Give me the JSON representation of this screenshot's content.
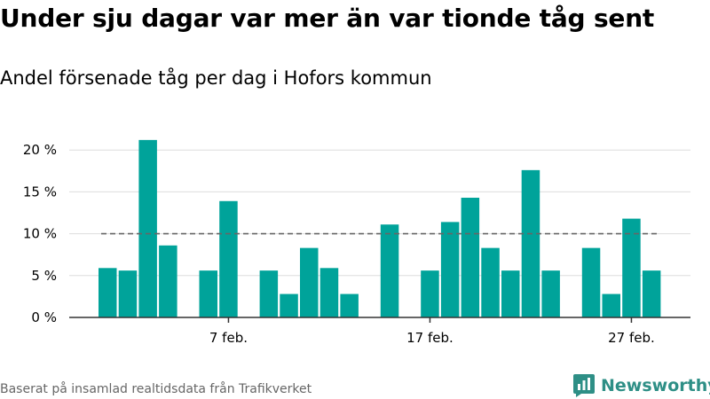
{
  "title": "Under sju dagar var mer än var tionde tåg sent",
  "subtitle": "Andel försenade tåg per dag i Hofors kommun",
  "source": "Baserat på insamlad realtidsdata från Trafikverket",
  "logo_text": "Newsworthy",
  "colors": {
    "bar": "#00a39a",
    "reference": "#666666",
    "grid": "#dddddd",
    "logo": "#2e8f86"
  },
  "chart_data": {
    "type": "bar",
    "title": "Under sju dagar var mer än var tionde tåg sent",
    "subtitle": "Andel försenade tåg per dag i Hofors kommun",
    "xlabel": "",
    "ylabel": "",
    "ylim": [
      0,
      25
    ],
    "yticks": [
      0,
      5,
      10,
      15,
      20
    ],
    "ytick_labels": [
      "0 %",
      "5 %",
      "10 %",
      "15 %",
      "20 %"
    ],
    "xtick_labels": [
      {
        "label": "7 feb.",
        "index": 6
      },
      {
        "label": "17 feb.",
        "index": 16
      },
      {
        "label": "27 feb.",
        "index": 26
      }
    ],
    "reference_line": {
      "value": 10,
      "dashed": true
    },
    "grid": true,
    "categories": [
      "1 feb.",
      "2 feb.",
      "3 feb.",
      "4 feb.",
      "5 feb.",
      "6 feb.",
      "7 feb.",
      "8 feb.",
      "9 feb.",
      "10 feb.",
      "11 feb.",
      "12 feb.",
      "13 feb.",
      "14 feb.",
      "15 feb.",
      "16 feb.",
      "17 feb.",
      "18 feb.",
      "19 feb.",
      "20 feb.",
      "21 feb.",
      "22 feb.",
      "23 feb.",
      "24 feb.",
      "25 feb.",
      "26 feb.",
      "27 feb.",
      "28 feb."
    ],
    "values": [
      5.9,
      5.6,
      21.2,
      8.6,
      null,
      5.6,
      13.9,
      null,
      5.6,
      2.8,
      8.3,
      5.9,
      2.8,
      null,
      11.1,
      null,
      5.6,
      11.4,
      14.3,
      8.3,
      5.6,
      17.6,
      5.6,
      null,
      8.3,
      2.8,
      11.8,
      5.6
    ]
  }
}
